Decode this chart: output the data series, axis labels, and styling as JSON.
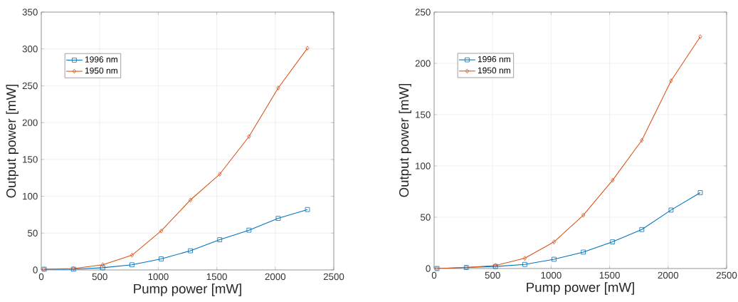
{
  "chart_data": [
    {
      "type": "line",
      "xlabel": "Pump power [mW]",
      "ylabel": "Output power [mW]",
      "x": [
        25,
        275,
        525,
        775,
        1025,
        1275,
        1525,
        1775,
        2025,
        2275
      ],
      "series": [
        {
          "name": "1996 nm",
          "color": "#0072bd",
          "marker": "square",
          "values": [
            1,
            1,
            3,
            7,
            15,
            26,
            41,
            54,
            70,
            82
          ]
        },
        {
          "name": "1950 nm",
          "color": "#d95319",
          "marker": "diamond",
          "values": [
            1,
            2,
            7,
            20,
            53,
            95,
            130,
            181,
            247,
            301
          ]
        }
      ],
      "xlim": [
        0,
        2500
      ],
      "xticks": [
        0,
        500,
        1000,
        1500,
        2000,
        2500
      ],
      "ylim": [
        0,
        350
      ],
      "yticks": [
        0,
        50,
        100,
        150,
        200,
        250,
        300,
        350
      ],
      "grid": true,
      "legend": "top left"
    },
    {
      "type": "line",
      "xlabel": "Pump power [mW]",
      "ylabel": "Output power [mW]",
      "x": [
        25,
        275,
        525,
        775,
        1025,
        1275,
        1525,
        1775,
        2025,
        2275
      ],
      "series": [
        {
          "name": "1996 nm",
          "color": "#0072bd",
          "marker": "square",
          "values": [
            0,
            1,
            2,
            4,
            9,
            16,
            26,
            38,
            57,
            74
          ]
        },
        {
          "name": "1950 nm",
          "color": "#d95319",
          "marker": "diamond",
          "values": [
            0,
            1,
            3,
            10,
            26,
            52,
            86,
            125,
            183,
            226
          ]
        }
      ],
      "xlim": [
        0,
        2500
      ],
      "xticks": [
        0,
        500,
        1000,
        1500,
        2000,
        2500
      ],
      "ylim": [
        0,
        250
      ],
      "yticks": [
        0,
        50,
        100,
        150,
        200,
        250
      ],
      "grid": true,
      "legend": "top left"
    }
  ]
}
